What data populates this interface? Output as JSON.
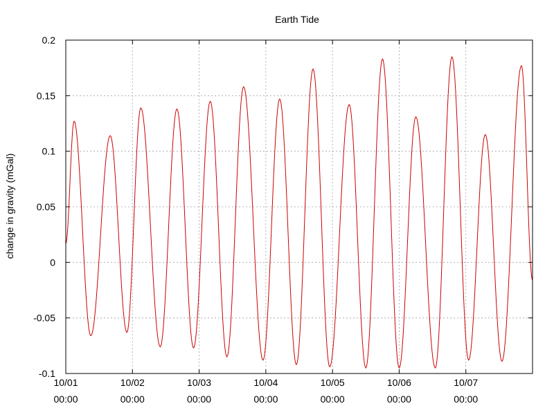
{
  "chart_data": {
    "type": "line",
    "title": "Earth Tide",
    "xlabel": "",
    "ylabel": "change in gravity (mGal)",
    "ylim": [
      -0.1,
      0.2
    ],
    "yticks": [
      "-0.1",
      "-0.05",
      "0",
      "0.05",
      "0.1",
      "0.15",
      "0.2"
    ],
    "xlim": [
      "10/01 00:00",
      "10/08 00:00"
    ],
    "xticks": [
      {
        "line1": "10/01",
        "line2": "00:00"
      },
      {
        "line1": "10/02",
        "line2": "00:00"
      },
      {
        "line1": "10/03",
        "line2": "00:00"
      },
      {
        "line1": "10/04",
        "line2": "00:00"
      },
      {
        "line1": "10/05",
        "line2": "00:00"
      },
      {
        "line1": "10/06",
        "line2": "00:00"
      },
      {
        "line1": "10/07",
        "line2": "00:00"
      }
    ],
    "grid": true,
    "legend": "none",
    "series": [
      {
        "color": "#cc0000",
        "x": [
          "10/01 00:00",
          "10/01 03:00",
          "10/01 09:00",
          "10/01 16:00",
          "10/01 22:00",
          "10/02 03:00",
          "10/02 10:00",
          "10/02 16:00",
          "10/02 22:00",
          "10/03 04:00",
          "10/03 10:00",
          "10/03 16:00",
          "10/03 23:00",
          "10/04 05:00",
          "10/04 11:00",
          "10/04 17:00",
          "10/04 23:00",
          "10/05 06:00",
          "10/05 12:00",
          "10/05 18:00",
          "10/06 00:00",
          "10/06 06:00",
          "10/06 13:00",
          "10/06 19:00",
          "10/07 01:00",
          "10/07 07:00",
          "10/07 13:00",
          "10/07 20:00",
          "10/08 00:00"
        ],
        "y": [
          0.017,
          0.127,
          -0.066,
          0.114,
          -0.063,
          0.139,
          -0.076,
          0.138,
          -0.077,
          0.145,
          -0.085,
          0.158,
          -0.088,
          0.147,
          -0.092,
          0.174,
          -0.094,
          0.142,
          -0.095,
          0.183,
          -0.095,
          0.131,
          -0.095,
          0.185,
          -0.088,
          0.115,
          -0.089,
          0.177,
          -0.016
        ]
      }
    ]
  }
}
